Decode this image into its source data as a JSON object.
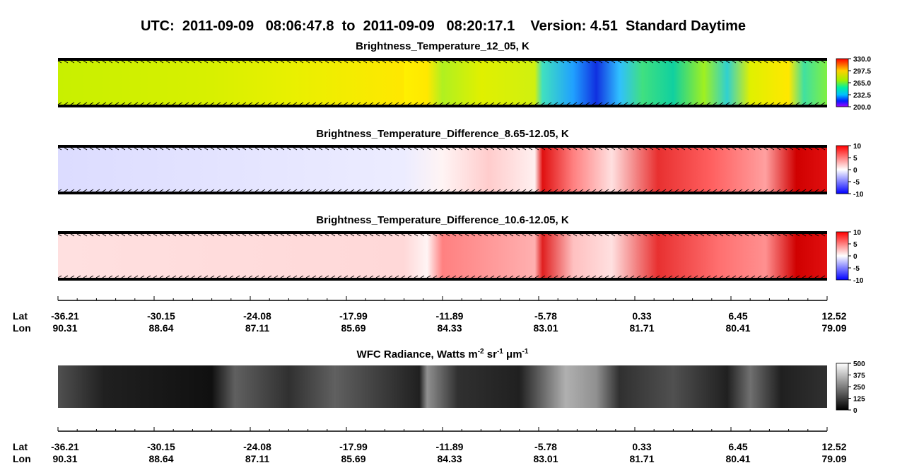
{
  "title": "UTC:  2011-09-09   08:06:47.8  to  2011-09-09   08:20:17.1    Version: 4.51  Standard Daytime",
  "panels": [
    {
      "title": "Brightness_Temperature_12_05, K",
      "ticks": [
        {
          "value": 330,
          "label": "330.0"
        },
        {
          "value": 297.5,
          "label": "297.5"
        },
        {
          "value": 265,
          "label": "265.0"
        },
        {
          "value": 232.5,
          "label": "232.5"
        },
        {
          "value": 200,
          "label": "200.0"
        }
      ]
    },
    {
      "title": "Brightness_Temperature_Difference_8.65-12.05, K",
      "ticks": [
        10,
        5,
        0,
        -5,
        -10
      ]
    },
    {
      "title": "Brightness_Temperature_Difference_10.6-12.05, K",
      "ticks": [
        10,
        5,
        0,
        -5,
        -10
      ]
    },
    {
      "title_parts": [
        "WFC Radiance, Watts m",
        "-2",
        " sr",
        "-1",
        " μm",
        "-1"
      ],
      "ticks": [
        500,
        375,
        250,
        125,
        0
      ]
    }
  ],
  "axis": {
    "lat_label": "Lat",
    "lon_label": "Lon",
    "lat": [
      -36.21,
      -30.15,
      -24.08,
      -17.99,
      -11.89,
      -5.78,
      0.33,
      6.45,
      12.52
    ],
    "lon": [
      90.31,
      88.64,
      87.11,
      85.69,
      84.33,
      83.01,
      81.71,
      80.41,
      79.09
    ]
  }
}
